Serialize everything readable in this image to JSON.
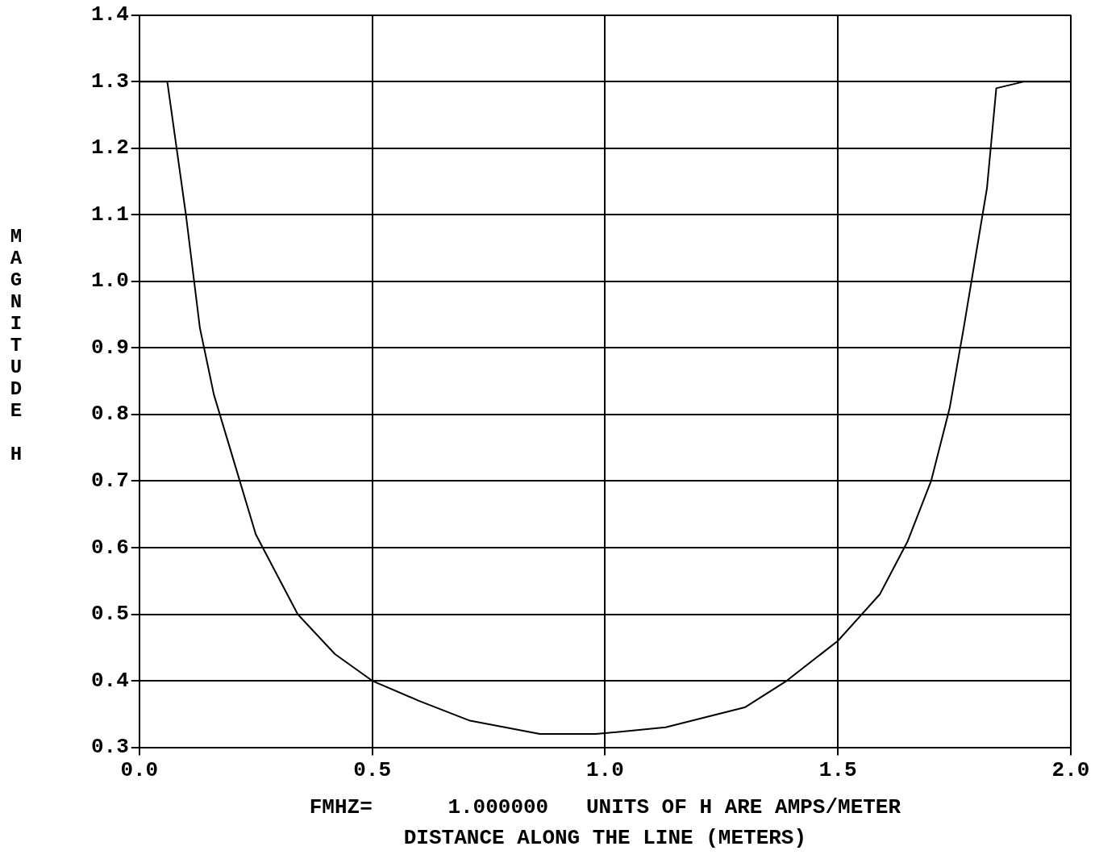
{
  "chart_data": {
    "type": "line",
    "xlabel": "DISTANCE ALONG THE LINE (METERS)",
    "ylabel": "MAGNITUDE H",
    "annotations": [
      "FMHZ=      1.000000   UNITS OF H ARE AMPS/METER"
    ],
    "x": [
      0,
      0.06,
      0.1,
      0.13,
      0.16,
      0.19,
      0.25,
      0.34,
      0.42,
      0.5,
      0.6,
      0.71,
      0.86,
      0.98,
      1.13,
      1.3,
      1.39,
      1.5,
      1.59,
      1.65,
      1.7,
      1.74,
      1.77,
      1.82,
      1.84,
      1.9,
      2.0
    ],
    "series": [
      {
        "color": "#000000",
        "values": [
          1.3,
          1.3,
          1.1,
          0.93,
          0.83,
          0.76,
          0.62,
          0.5,
          0.44,
          0.4,
          0.37,
          0.34,
          0.32,
          0.32,
          0.33,
          0.36,
          0.4,
          0.46,
          0.53,
          0.61,
          0.7,
          0.81,
          0.93,
          1.14,
          1.29,
          1.3,
          1.3
        ]
      }
    ],
    "xlim": [
      0,
      2
    ],
    "xticks": [
      {
        "value": 0,
        "label": "0.0"
      },
      0.5,
      {
        "value": 1,
        "label": "1.0"
      },
      1.5,
      {
        "value": 2,
        "label": "2.0"
      }
    ],
    "ylim": [
      0.3,
      1.4
    ],
    "yticks": [
      0.3,
      0.4,
      0.5,
      0.6,
      0.7,
      0.8,
      0.9,
      {
        "value": 1,
        "label": "1.0"
      },
      1.1,
      1.2,
      1.3,
      1.4
    ],
    "grid": true,
    "legend": false,
    "line_style": "solid"
  }
}
